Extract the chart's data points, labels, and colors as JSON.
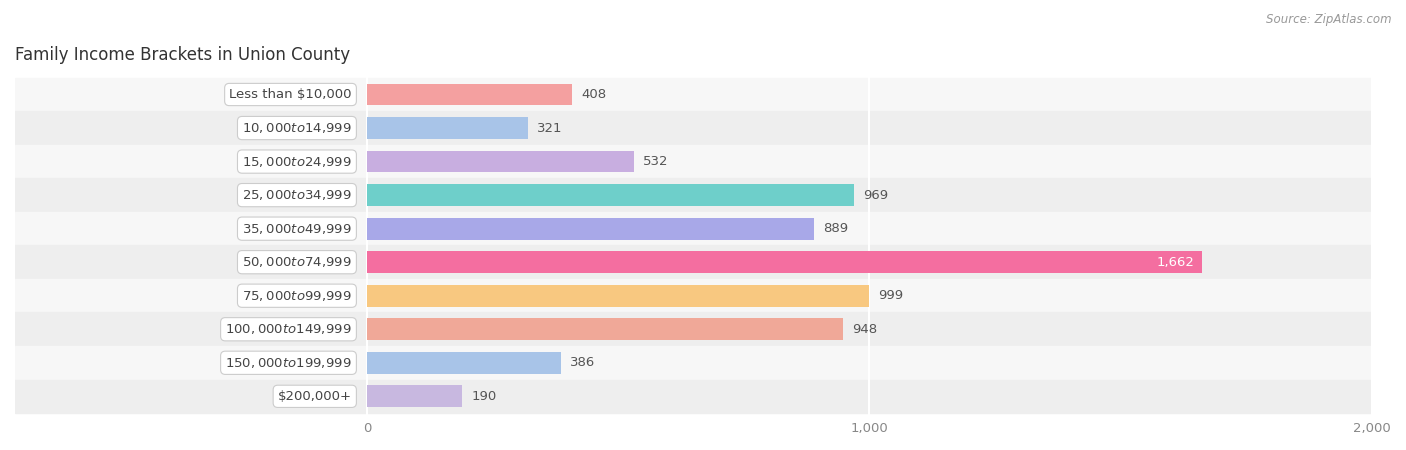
{
  "title": "Family Income Brackets in Union County",
  "source": "Source: ZipAtlas.com",
  "categories": [
    "Less than $10,000",
    "$10,000 to $14,999",
    "$15,000 to $24,999",
    "$25,000 to $34,999",
    "$35,000 to $49,999",
    "$50,000 to $74,999",
    "$75,000 to $99,999",
    "$100,000 to $149,999",
    "$150,000 to $199,999",
    "$200,000+"
  ],
  "values": [
    408,
    321,
    532,
    969,
    889,
    1662,
    999,
    948,
    386,
    190
  ],
  "bar_colors": [
    "#f4a0a0",
    "#a8c4e8",
    "#c8aee0",
    "#6ecfca",
    "#a8a8e8",
    "#f46ea0",
    "#f8c880",
    "#f0a898",
    "#a8c4e8",
    "#c8b8e0"
  ],
  "xlim_left": -700,
  "xlim_right": 2000,
  "xticks": [
    0,
    1000,
    2000
  ],
  "xticklabels": [
    "0",
    "1,000",
    "2,000"
  ],
  "background_color": "#ffffff",
  "row_bg_colors": [
    "#f7f7f7",
    "#eeeeee"
  ],
  "label_outside_color": "#555555",
  "white_label_color": "#ffffff",
  "title_fontsize": 12,
  "source_fontsize": 8.5,
  "value_fontsize": 9.5,
  "cat_fontsize": 9.5,
  "bar_height": 0.65
}
